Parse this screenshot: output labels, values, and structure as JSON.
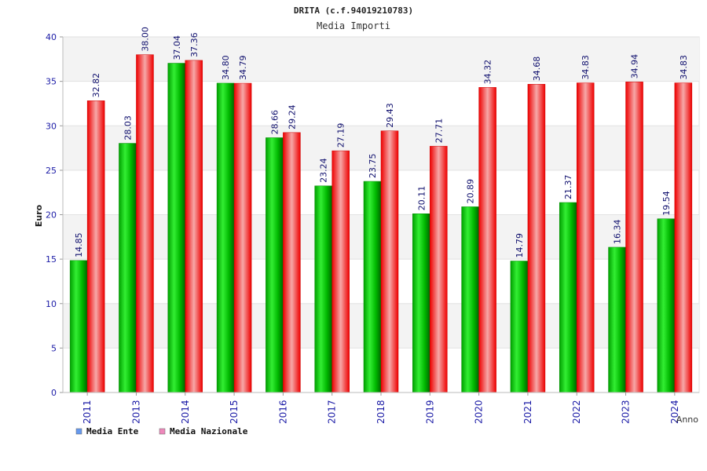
{
  "chart_data": {
    "type": "bar",
    "title": "DRITA (c.f.94019210783)",
    "subtitle": "Media Importi",
    "xlabel": "Anno",
    "ylabel": "Euro",
    "ylim": [
      0,
      40
    ],
    "yticks": [
      "0",
      "5",
      "10",
      "15",
      "20",
      "25",
      "30",
      "35",
      "40"
    ],
    "grid": true,
    "legend_position": "bottom-left",
    "categories": [
      "2011",
      "2013",
      "2014",
      "2015",
      "2016",
      "2017",
      "2018",
      "2019",
      "2020",
      "2021",
      "2022",
      "2023",
      "2024"
    ],
    "series": [
      {
        "name": "Media Ente",
        "values": [
          14.85,
          28.03,
          37.04,
          34.8,
          28.66,
          23.24,
          23.75,
          20.11,
          20.89,
          14.79,
          21.37,
          16.34,
          19.54
        ],
        "labels": [
          "14.85",
          "28.03",
          "37.04",
          "34.80",
          "28.66",
          "23.24",
          "23.75",
          "20.11",
          "20.89",
          "14.79",
          "21.37",
          "16.34",
          "19.54"
        ],
        "color": "#00c000",
        "legend_color": "#6699ee"
      },
      {
        "name": "Media Nazionale",
        "values": [
          32.82,
          38.0,
          37.36,
          34.79,
          29.24,
          27.19,
          29.43,
          27.71,
          34.32,
          34.68,
          34.83,
          34.94,
          34.83
        ],
        "labels": [
          "32.82",
          "38.00",
          "37.36",
          "34.79",
          "29.24",
          "27.19",
          "29.43",
          "27.71",
          "34.32",
          "34.68",
          "34.83",
          "34.94",
          "34.83"
        ],
        "color": "#ff1a1a",
        "legend_color": "#ee88bb"
      }
    ]
  }
}
